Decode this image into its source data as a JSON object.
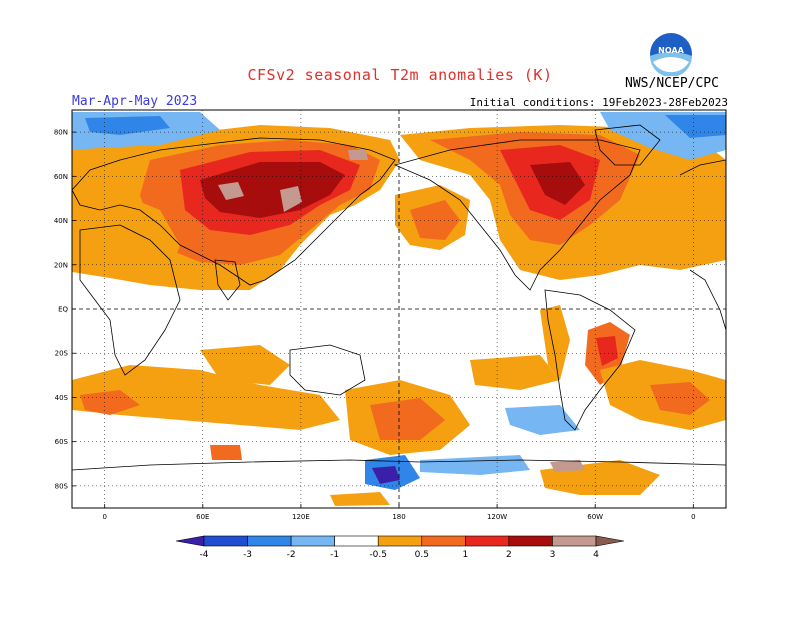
{
  "header": {
    "title": "CFSv2 seasonal T2m anomalies (K)",
    "agency": "NWS/NCEP/CPC",
    "logo_text": "NOAA",
    "season": "Mar-Apr-May 2023",
    "initial_conditions": "Initial conditions: 19Feb2023-28Feb2023"
  },
  "axes": {
    "lat_labels": [
      "80N",
      "60N",
      "40N",
      "20N",
      "EQ",
      "20S",
      "40S",
      "60S",
      "80S"
    ],
    "lat_values": [
      80,
      60,
      40,
      20,
      0,
      -20,
      -40,
      -60,
      -80
    ],
    "lon_labels": [
      "0",
      "60E",
      "120E",
      "180",
      "120W",
      "60W",
      "0"
    ],
    "lon_values": [
      0,
      60,
      120,
      180,
      240,
      300,
      360
    ]
  },
  "colorbar": {
    "labels": [
      "-4",
      "-3",
      "-2",
      "-1",
      "-0.5",
      "0.5",
      "1",
      "2",
      "3",
      "4"
    ],
    "colors": [
      "#3b1fa8",
      "#1f4fd0",
      "#2f86e8",
      "#76b6f2",
      "#ffffff",
      "#f5a011",
      "#f26a1e",
      "#e8281e",
      "#a80d0d",
      "#c49a90",
      "#8a5a4e"
    ]
  },
  "chart_data": {
    "type": "heatmap",
    "title": "CFSv2 seasonal T2m anomalies (K)",
    "subtitle": "Mar-Apr-May 2023",
    "lon_range": [
      -20,
      380
    ],
    "lat_range": [
      -90,
      90
    ],
    "levels": [
      -4,
      -3,
      -2,
      -1,
      -0.5,
      0.5,
      1,
      2,
      3,
      4
    ],
    "anomaly_regions": [
      {
        "lon": [
          10,
          170
        ],
        "lat": [
          10,
          75
        ],
        "value": 1.5
      },
      {
        "lon": [
          40,
          150
        ],
        "lat": [
          25,
          65
        ],
        "value": 2.5
      },
      {
        "lon": [
          60,
          140
        ],
        "lat": [
          40,
          60
        ],
        "value": 3.5
      },
      {
        "lon": [
          240,
          340
        ],
        "lat": [
          45,
          80
        ],
        "value": 1.5
      },
      {
        "lon": [
          260,
          320
        ],
        "lat": [
          40,
          65
        ],
        "value": 2.5
      },
      {
        "lon": [
          150,
          210
        ],
        "lat": [
          -50,
          -30
        ],
        "value": 1.5
      },
      {
        "lon": [
          160,
          195
        ],
        "lat": [
          -80,
          -65
        ],
        "value": -2.0
      },
      {
        "lon": [
          295,
          325
        ],
        "lat": [
          -28,
          -15
        ],
        "value": 2.5
      },
      {
        "lon": [
          250,
          280
        ],
        "lat": [
          -58,
          -48
        ],
        "value": -1.0
      },
      {
        "lon": [
          -15,
          60
        ],
        "lat": [
          80,
          88
        ],
        "value": -1.5
      },
      {
        "lon": [
          340,
          380
        ],
        "lat": [
          80,
          88
        ],
        "value": -1.5
      }
    ]
  }
}
